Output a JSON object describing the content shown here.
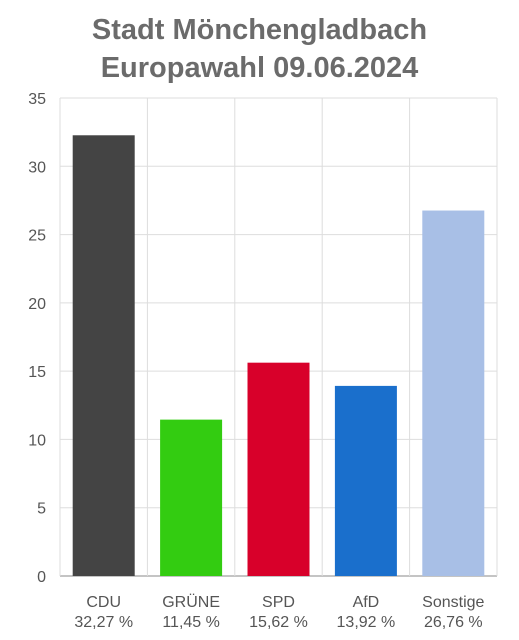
{
  "title_line1": "Stadt Mönchengladbach",
  "title_line2": "Europawahl 09.06.2024",
  "chart_data": {
    "type": "bar",
    "title": "Stadt Mönchengladbach Europawahl 09.06.2024",
    "categories": [
      "CDU",
      "GRÜNE",
      "SPD",
      "AfD",
      "Sonstige"
    ],
    "values": [
      32.27,
      11.45,
      15.62,
      13.92,
      26.76
    ],
    "value_labels": [
      "32,27 %",
      "11,45 %",
      "15,62 %",
      "13,92 %",
      "26,76 %"
    ],
    "colors": [
      "#444444",
      "#33cc11",
      "#d8002a",
      "#1a6fcc",
      "#a8bfe6"
    ],
    "ylim": [
      0,
      35
    ],
    "yticks": [
      0,
      5,
      10,
      15,
      20,
      25,
      30,
      35
    ],
    "grid": true,
    "legend": "none"
  }
}
